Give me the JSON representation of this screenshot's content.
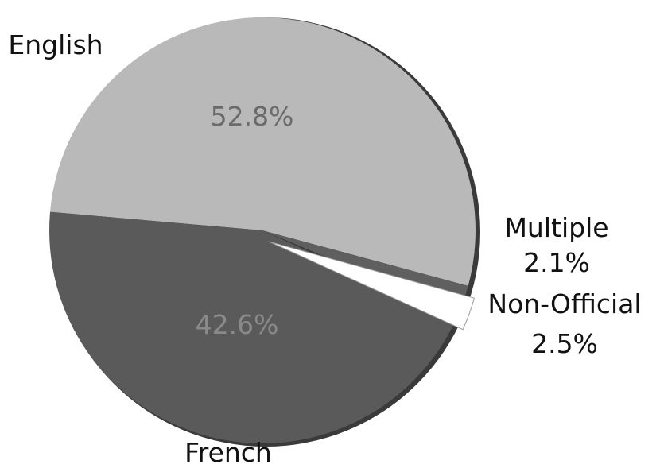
{
  "chart_data": {
    "type": "pie",
    "title": "",
    "slices": [
      {
        "label": "English",
        "value_text": "52.8%",
        "value": 52.8,
        "color": "#b9b9b9",
        "text_color": "#6a6a6a"
      },
      {
        "label": "Multiple",
        "value_text": "2.1%",
        "value": 2.1,
        "color": "#5f5f5f"
      },
      {
        "label": "Non-Official",
        "value_text": "2.5%",
        "value": 2.5,
        "color": "#ffffff"
      },
      {
        "label": "French",
        "value_text": "42.6%",
        "value": 42.6,
        "color": "#5a5a5a",
        "text_color": "#8a8a8a"
      }
    ],
    "legend": "none"
  },
  "colors": {
    "edge": "#3a3a3a"
  }
}
